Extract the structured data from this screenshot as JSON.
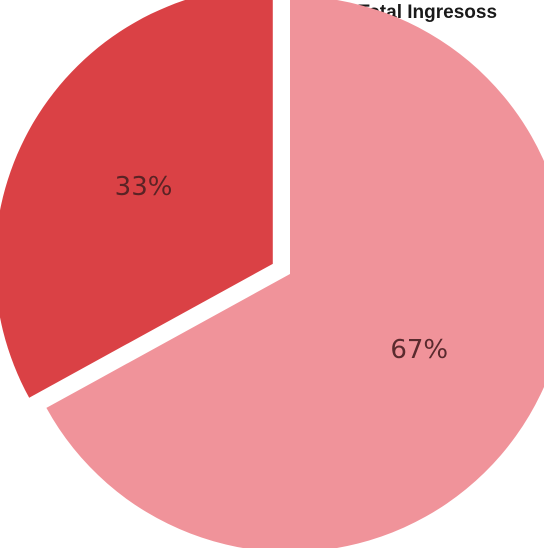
{
  "chart_data": {
    "type": "pie",
    "title": "Total Ingresoss",
    "slices": [
      {
        "value": 67,
        "label": "67%",
        "color": "#f0939a",
        "label_color": "#5a2a2e"
      },
      {
        "value": 33,
        "label": "33%",
        "color": "#da4145",
        "label_color": "#5a2325",
        "exploded": true
      }
    ]
  }
}
